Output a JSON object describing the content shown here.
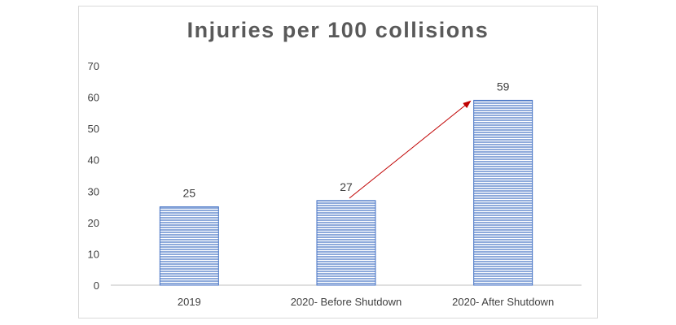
{
  "chart_data": {
    "type": "bar",
    "title": "Injuries per 100 collisions",
    "categories": [
      "2019",
      "2020- Before Shutdown",
      "2020- After Shutdown"
    ],
    "values": [
      25,
      27,
      59
    ],
    "data_labels": [
      "25",
      "27",
      "59"
    ],
    "ylim": [
      0,
      70
    ],
    "yticks": [
      0,
      10,
      20,
      30,
      40,
      50,
      60,
      70
    ],
    "xlabel": "",
    "ylabel": "",
    "grid": false,
    "legend": "none",
    "annotations": [
      {
        "type": "arrow",
        "from_category": 1,
        "from_value": 27,
        "to_category": 2,
        "to_value": 59
      }
    ]
  },
  "colors": {
    "bar_fill": "#8eaadb",
    "bar_stripe": "#ffffff",
    "bar_border": "#4472c4",
    "arrow": "#c00000",
    "axis": "#bfbfbf",
    "text": "#404040",
    "title": "#595959"
  }
}
